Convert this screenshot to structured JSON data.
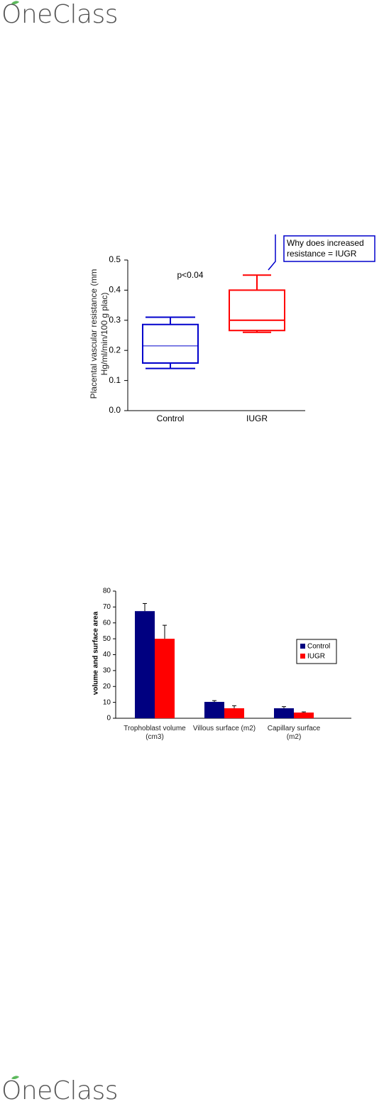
{
  "header": {
    "logo": "OneClass"
  },
  "footer": {
    "logo": "OneClass"
  },
  "chart_data": [
    {
      "type": "box",
      "ylabel": "Placental vascular resistance (mm Hg/ml/min/100 g plac)",
      "annotation": "p<0.04",
      "callout": "Why does increased resistance = IUGR",
      "categories": [
        "Control",
        "IUGR"
      ],
      "colors": [
        "#0000cc",
        "#ff0000"
      ],
      "boxes": [
        {
          "min": 0.14,
          "q1": 0.158,
          "median": 0.215,
          "q3": 0.286,
          "max": 0.31
        },
        {
          "min": 0.26,
          "q1": 0.266,
          "median": 0.3,
          "q3": 0.4,
          "max": 0.45
        }
      ],
      "ylim": [
        0,
        0.5
      ],
      "yticks": [
        {
          "value": 0,
          "label": "0.0"
        },
        0.1,
        0.2,
        0.3,
        0.4,
        0.5
      ]
    },
    {
      "type": "bar",
      "ylabel": "volume and surface area",
      "categories": [
        "Trophoblast volume (cm3)",
        "Villous surface (m2)",
        "Capillary surface (m2)"
      ],
      "series": [
        {
          "name": "Control",
          "color": "#000080",
          "values": [
            67.4,
            10.3,
            6.3
          ],
          "errors": [
            4.8,
            0.8,
            1.0
          ]
        },
        {
          "name": "IUGR",
          "color": "#ff0000",
          "values": [
            50,
            6.3,
            3.6
          ],
          "errors": [
            8.5,
            1.6,
            0.4
          ]
        }
      ],
      "ylim": [
        0,
        80
      ],
      "yticks": [
        0,
        10,
        20,
        30,
        40,
        50,
        60,
        70,
        80
      ],
      "legend": "right"
    }
  ]
}
